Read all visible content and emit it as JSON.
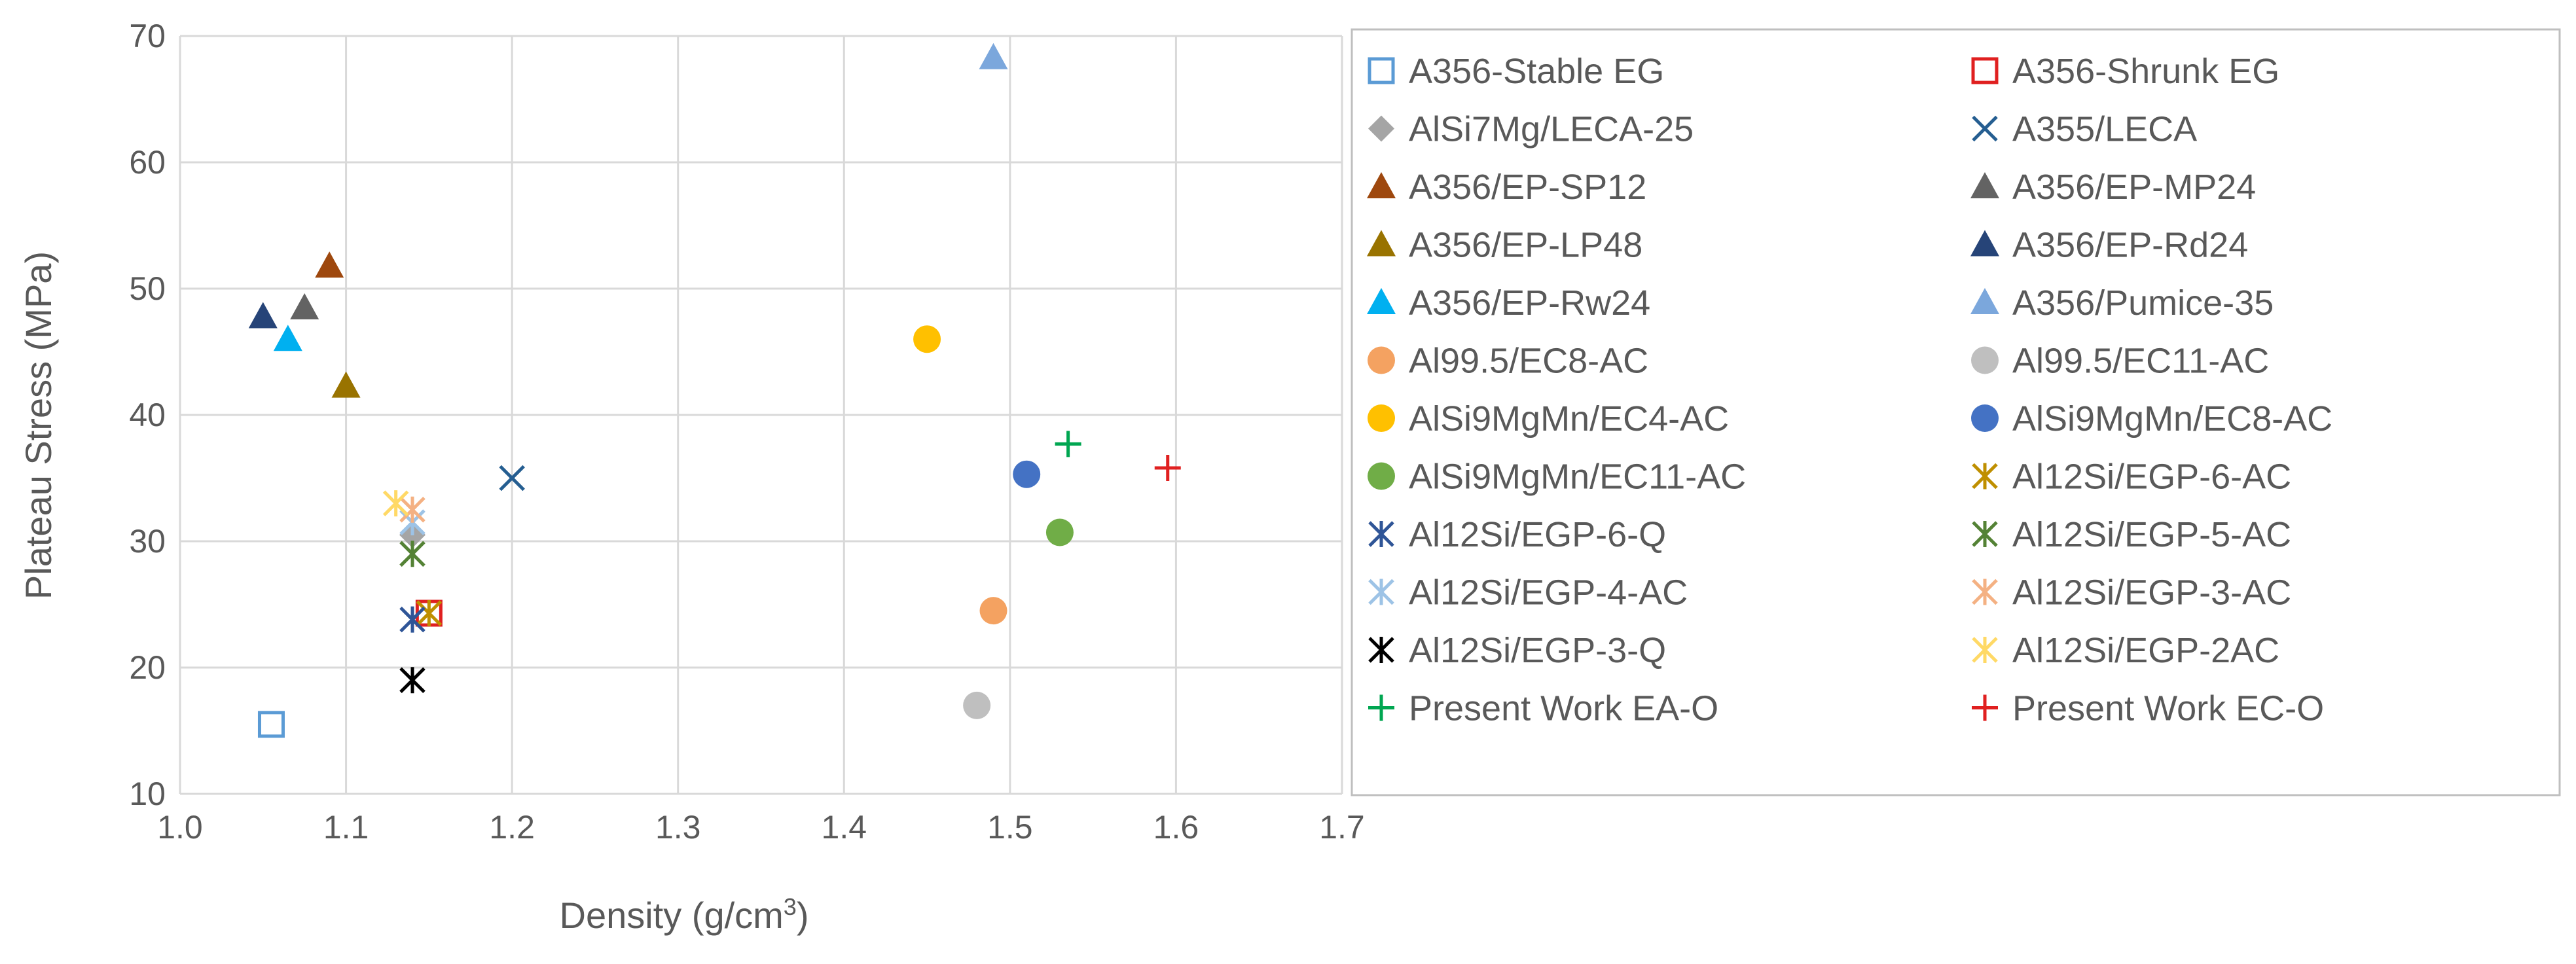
{
  "chart_data": {
    "type": "scatter",
    "xlabel": "Density (g/cm",
    "xlabel_sup": "3",
    "xlabel_end": ")",
    "ylabel": "Plateau Stress (MPa)",
    "xlim": [
      1.0,
      1.7
    ],
    "ylim": [
      10,
      70
    ],
    "x_ticks": [
      "1.0",
      "1.1",
      "1.2",
      "1.3",
      "1.4",
      "1.5",
      "1.6",
      "1.7"
    ],
    "y_ticks": [
      "10",
      "20",
      "30",
      "40",
      "50",
      "60",
      "70"
    ],
    "grid": true,
    "legend_position": "right",
    "series": [
      {
        "name": "A356-Stable EG",
        "marker": "square-open",
        "color": "#5b9bd5",
        "points": [
          [
            1.055,
            15.5
          ]
        ]
      },
      {
        "name": "A356-Shrunk EG",
        "marker": "square-open",
        "color": "#e02020",
        "points": [
          [
            1.15,
            24.3
          ]
        ]
      },
      {
        "name": "AlSi7Mg/LECA-25",
        "marker": "diamond",
        "color": "#a5a5a5",
        "points": [
          [
            1.14,
            30.5
          ]
        ]
      },
      {
        "name": "A355/LECA",
        "marker": "x",
        "color": "#255e91",
        "points": [
          [
            1.2,
            35.0
          ]
        ]
      },
      {
        "name": "A356/EP-SP12",
        "marker": "triangle",
        "color": "#9e480e",
        "points": [
          [
            1.09,
            51.8
          ]
        ]
      },
      {
        "name": "A356/EP-MP24",
        "marker": "triangle",
        "color": "#636363",
        "points": [
          [
            1.075,
            48.5
          ]
        ]
      },
      {
        "name": "A356/EP-LP48",
        "marker": "triangle",
        "color": "#997300",
        "points": [
          [
            1.1,
            42.3
          ]
        ]
      },
      {
        "name": "A356/EP-Rd24",
        "marker": "triangle",
        "color": "#264478",
        "points": [
          [
            1.05,
            47.8
          ]
        ]
      },
      {
        "name": "A356/EP-Rw24",
        "marker": "triangle",
        "color": "#00b0f0",
        "points": [
          [
            1.065,
            46.0
          ]
        ]
      },
      {
        "name": "A356/Pumice-35",
        "marker": "triangle",
        "color": "#7ba7dc",
        "points": [
          [
            1.49,
            68.3
          ]
        ]
      },
      {
        "name": "Al99.5/EC8-AC",
        "marker": "circle",
        "color": "#f4a261",
        "points": [
          [
            1.49,
            24.5
          ]
        ]
      },
      {
        "name": "Al99.5/EC11-AC",
        "marker": "circle",
        "color": "#bfbfbf",
        "points": [
          [
            1.48,
            17.0
          ]
        ]
      },
      {
        "name": "AlSi9MgMn/EC4-AC",
        "marker": "circle",
        "color": "#ffc000",
        "points": [
          [
            1.45,
            46.0
          ]
        ]
      },
      {
        "name": "AlSi9MgMn/EC8-AC",
        "marker": "circle",
        "color": "#4472c4",
        "points": [
          [
            1.51,
            35.3
          ]
        ]
      },
      {
        "name": "AlSi9MgMn/EC11-AC",
        "marker": "circle",
        "color": "#70ad47",
        "points": [
          [
            1.53,
            30.7
          ]
        ]
      },
      {
        "name": "Al12Si/EGP-6-AC",
        "marker": "star",
        "color": "#bf8f00",
        "points": [
          [
            1.15,
            24.3
          ]
        ]
      },
      {
        "name": "Al12Si/EGP-6-Q",
        "marker": "star",
        "color": "#2f5597",
        "points": [
          [
            1.14,
            23.8
          ]
        ]
      },
      {
        "name": "Al12Si/EGP-5-AC",
        "marker": "star",
        "color": "#548235",
        "points": [
          [
            1.14,
            29.0
          ]
        ]
      },
      {
        "name": "Al12Si/EGP-4-AC",
        "marker": "star",
        "color": "#9dc3e6",
        "points": [
          [
            1.14,
            31.5
          ]
        ]
      },
      {
        "name": "Al12Si/EGP-3-AC",
        "marker": "star",
        "color": "#f4b183",
        "points": [
          [
            1.14,
            32.5
          ]
        ]
      },
      {
        "name": "Al12Si/EGP-3-Q",
        "marker": "star",
        "color": "#000000",
        "points": [
          [
            1.14,
            19.0
          ]
        ]
      },
      {
        "name": "Al12Si/EGP-2AC",
        "marker": "star",
        "color": "#ffd966",
        "points": [
          [
            1.13,
            33.0
          ]
        ]
      },
      {
        "name": "Present Work EA-O",
        "marker": "plus",
        "color": "#00a651",
        "points": [
          [
            1.535,
            37.7
          ]
        ]
      },
      {
        "name": "Present Work EC-O",
        "marker": "plus",
        "color": "#e02020",
        "points": [
          [
            1.595,
            35.8
          ]
        ]
      }
    ]
  },
  "colors": {
    "grid": "#d9d9d9",
    "text": "#595959",
    "legend_border": "#bfbfbf"
  }
}
